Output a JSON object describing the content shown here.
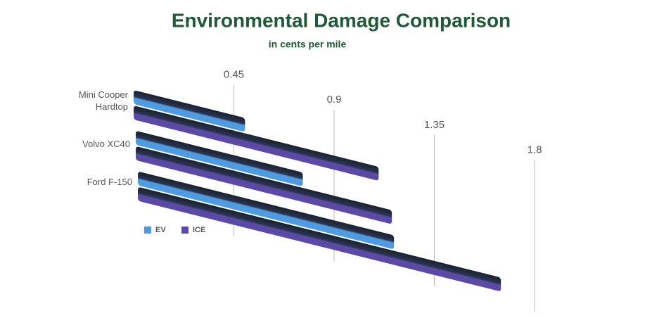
{
  "chart_data": {
    "type": "bar",
    "orientation": "horizontal",
    "title": "Environmental Damage Comparison",
    "subtitle": "in cents per mile",
    "categories": [
      "Mini Cooper Hardtop",
      "Volvo XC40",
      "Ford F-150"
    ],
    "series": [
      {
        "name": "EV",
        "color": "#4f9be2",
        "values": [
          0.5,
          0.75,
          1.15
        ]
      },
      {
        "name": "ICE",
        "color": "#5a4aa6",
        "values": [
          1.1,
          1.15,
          1.63
        ]
      }
    ],
    "xlim": [
      0,
      1.8
    ],
    "xticks": [
      0.45,
      0.9,
      1.35,
      1.8
    ],
    "grid": true,
    "legend": "bottom-left"
  }
}
